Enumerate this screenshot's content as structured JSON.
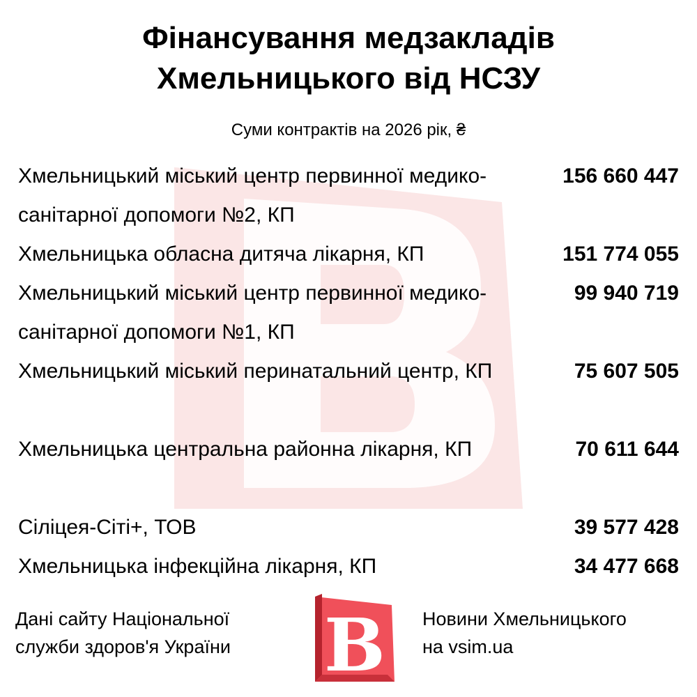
{
  "chart_data": {
    "type": "table",
    "title_lines": [
      "Фінансування медзакладів",
      "Хмельницького від НСЗУ"
    ],
    "subtitle": "Суми контрактів на 2026 рік, ₴",
    "rows": [
      {
        "name": "Хмельницький міський центр первинної медико-санітарної допомоги №2, КП",
        "value_label": "156 660 447",
        "value": 156660447
      },
      {
        "name": "Хмельницька обласна дитяча лікарня, КП",
        "value_label": "151 774 055",
        "value": 151774055
      },
      {
        "name": "Хмельницький міський центр первинної медико-санітарної допомоги №1, КП",
        "value_label": "99 940 719",
        "value": 99940719
      },
      {
        "name": "Хмельницький міський перинатальний центр, КП",
        "value_label": "75 607 505",
        "value": 75607505
      },
      {
        "name": "Хмельницька центральна районна лікарня, КП",
        "value_label": "70 611 644",
        "value": 70611644
      },
      {
        "name": "Сіліцея-Сіті+, ТОВ",
        "value_label": "39 577 428",
        "value": 39577428
      },
      {
        "name": "Хмельницька інфекційна лікарня, КП",
        "value_label": "34 477 668",
        "value": 34477668
      }
    ]
  },
  "footer": {
    "source_lines": [
      "Дані сайту Національної",
      "служби здоров'я України"
    ],
    "brand_lines": [
      "Новини Хмельницького",
      "на vsim.ua"
    ]
  },
  "logo": {
    "letter": "В",
    "icon": "vsim-logo-icon",
    "color": "#f0505a",
    "dark_color": "#b5232d"
  },
  "watermark": {
    "icon": "vsim-watermark-icon",
    "color": "#fbe3e3"
  }
}
